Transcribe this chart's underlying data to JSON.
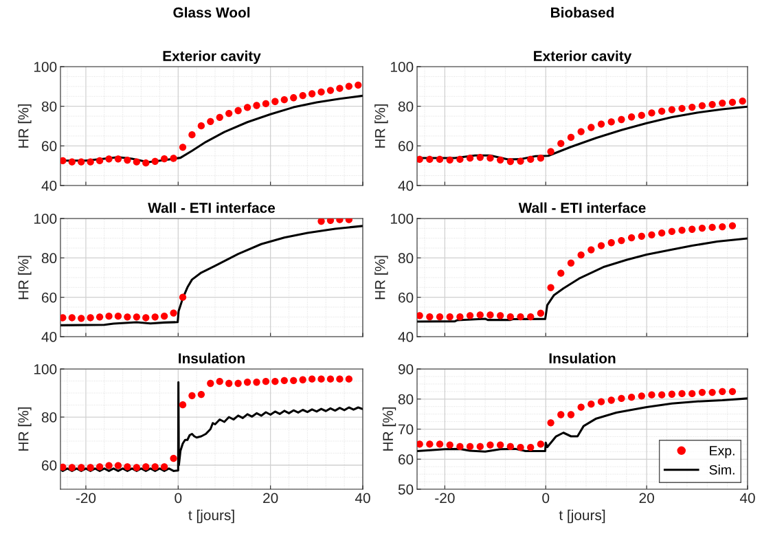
{
  "chart_data": [
    {
      "type": "line",
      "annotations": [
        "Glass Wool"
      ],
      "title": "Exterior cavity",
      "ylabel": "HR [%]",
      "xlim": [
        -25.5,
        40
      ],
      "ylim": [
        40,
        100
      ],
      "xticks": [
        -20,
        0,
        20,
        40
      ],
      "yticks": [
        40,
        60,
        80,
        100
      ],
      "tick_labels": "y",
      "grid": true,
      "series": [
        {
          "type": "scatter",
          "marker": "circle",
          "color": "#ff0000",
          "x": [
            -25,
            -23,
            -21,
            -19,
            -17,
            -15,
            -13,
            -11,
            -9,
            -7,
            -5,
            -3,
            -1,
            1,
            3,
            5,
            7,
            9,
            11,
            13,
            15,
            17,
            19,
            21,
            23,
            25,
            27,
            29,
            31,
            33,
            35,
            37,
            39
          ],
          "values": [
            52.5,
            51.9,
            51.9,
            51.9,
            52.5,
            53.4,
            53.4,
            52.8,
            51.9,
            51.4,
            52.2,
            53.5,
            53.7,
            59.3,
            65.6,
            70.1,
            72.3,
            74.4,
            76.4,
            77.8,
            79.4,
            80.4,
            81.3,
            82.4,
            83.3,
            84.3,
            85.4,
            86.3,
            87.2,
            88.0,
            89.0,
            90.1,
            90.7
          ]
        },
        {
          "line_style": "solid",
          "color": "#000000",
          "x": [
            -25.5,
            -20,
            -16,
            -13,
            -10,
            -6.5,
            -3,
            0.5,
            3,
            6,
            10,
            15,
            20,
            25,
            30,
            35,
            40
          ],
          "values": [
            52.6,
            52.6,
            53.5,
            54.3,
            53.5,
            51.8,
            52.8,
            54,
            57.5,
            62,
            67,
            72,
            76,
            79.5,
            82,
            83.8,
            85.3
          ]
        }
      ]
    },
    {
      "type": "line",
      "annotations": [
        "Biobased"
      ],
      "title": "Exterior cavity",
      "ylabel": "HR [%]",
      "xlim": [
        -25.5,
        40
      ],
      "ylim": [
        40,
        100
      ],
      "xticks": [
        -20,
        0,
        20,
        40
      ],
      "yticks": [
        40,
        60,
        80,
        100
      ],
      "tick_labels": "y",
      "grid": true,
      "series": [
        {
          "type": "scatter",
          "marker": "circle",
          "color": "#ff0000",
          "x": [
            -25,
            -23,
            -21,
            -19,
            -17,
            -15,
            -13,
            -11,
            -9,
            -7,
            -5,
            -3,
            -1,
            1,
            3,
            5,
            7,
            9,
            11,
            13,
            15,
            17,
            19,
            21,
            23,
            25,
            27,
            29,
            31,
            33,
            35,
            37,
            39
          ],
          "values": [
            53.2,
            53.2,
            53.2,
            52.9,
            53.2,
            53.8,
            54.2,
            53.8,
            52.9,
            52.1,
            52.3,
            53.2,
            53.8,
            57.1,
            61.2,
            64.3,
            67.2,
            69.3,
            71.0,
            72.1,
            73.3,
            74.6,
            75.4,
            76.6,
            77.5,
            78.3,
            78.9,
            79.5,
            80.3,
            80.9,
            81.6,
            82.0,
            82.6
          ]
        },
        {
          "line_style": "solid",
          "color": "#000000",
          "x": [
            -25.5,
            -18,
            -14,
            -11,
            -7.5,
            -5,
            -2,
            0.5,
            5,
            10,
            15,
            20,
            25,
            30,
            35,
            40
          ],
          "values": [
            53.9,
            53.9,
            55.2,
            55.2,
            53.2,
            53.3,
            54.8,
            55,
            59.5,
            64,
            68,
            71.5,
            74.5,
            76.8,
            78.5,
            79.8
          ]
        }
      ]
    },
    {
      "type": "line",
      "title": "Wall - ETI interface",
      "ylabel": "HR [%]",
      "xlim": [
        -25.5,
        40
      ],
      "ylim": [
        40,
        100
      ],
      "xticks": [
        -20,
        0,
        20,
        40
      ],
      "yticks": [
        40,
        60,
        80,
        100
      ],
      "tick_labels": "y",
      "grid": true,
      "series": [
        {
          "type": "scatter",
          "marker": "circle",
          "color": "#ff0000",
          "x": [
            -25,
            -23,
            -21,
            -19,
            -17,
            -15,
            -13,
            -11,
            -9,
            -7,
            -5,
            -3,
            -1,
            1,
            31,
            33,
            35,
            37
          ],
          "values": [
            49.6,
            49.6,
            49.3,
            49.6,
            50.0,
            50.4,
            50.4,
            50.0,
            50.0,
            49.6,
            50.0,
            50.4,
            52.0,
            60.0,
            98.6,
            99.0,
            99.4,
            99.4
          ]
        },
        {
          "line_style": "solid",
          "color": "#000000",
          "x": [
            -25.5,
            -16,
            -14,
            -9,
            -6,
            -3,
            -0.1,
            0.1,
            1,
            2,
            3,
            5,
            8,
            13,
            18,
            23,
            28,
            34,
            40
          ],
          "values": [
            45.8,
            46,
            46.6,
            47.3,
            46.7,
            47.2,
            47.4,
            53,
            59.5,
            65,
            69,
            72.5,
            76,
            82,
            87,
            90.3,
            92.7,
            94.8,
            96.2
          ]
        }
      ]
    },
    {
      "type": "line",
      "title": "Wall - ETI interface",
      "ylabel": "HR [%]",
      "xlim": [
        -25.5,
        40
      ],
      "ylim": [
        40,
        100
      ],
      "xticks": [
        -20,
        0,
        20,
        40
      ],
      "yticks": [
        40,
        60,
        80,
        100
      ],
      "tick_labels": "y",
      "grid": true,
      "series": [
        {
          "type": "scatter",
          "marker": "circle",
          "color": "#ff0000",
          "x": [
            -25,
            -23,
            -21,
            -19,
            -17,
            -15,
            -13,
            -11,
            -9,
            -7,
            -5,
            -3,
            -1,
            1,
            3,
            5,
            7,
            9,
            11,
            13,
            15,
            17,
            19,
            21,
            23,
            25,
            27,
            29,
            31,
            33,
            35,
            37
          ],
          "values": [
            50.7,
            50.1,
            50.1,
            50.1,
            50.1,
            50.7,
            51.0,
            51.0,
            50.7,
            50.1,
            50.1,
            50.1,
            51.9,
            64.9,
            72.2,
            77.4,
            81.5,
            84.1,
            86.2,
            87.7,
            88.8,
            90.2,
            91.0,
            91.7,
            92.6,
            93.4,
            94.0,
            94.5,
            95.1,
            95.5,
            95.8,
            96.3
          ]
        },
        {
          "line_style": "solid",
          "color": "#000000",
          "x": [
            -25.5,
            -18,
            -17.5,
            -12,
            -11.5,
            -7,
            -6.5,
            -0.1,
            0.3,
            1.6,
            3.5,
            6.6,
            11.6,
            16,
            20,
            25,
            29,
            34,
            40
          ],
          "values": [
            47.7,
            47.8,
            48.4,
            49.1,
            48.5,
            48.5,
            48.9,
            49,
            56,
            61,
            64.5,
            69.5,
            75.5,
            79,
            81.7,
            84.2,
            86.2,
            88.3,
            89.9
          ]
        }
      ]
    },
    {
      "type": "line",
      "title": "Insulation",
      "xlabel": "t [jours]",
      "ylabel": "HR [%]",
      "xlim": [
        -25.5,
        40
      ],
      "ylim": [
        50,
        100
      ],
      "xticks": [
        -20,
        0,
        20,
        40
      ],
      "yticks": [
        60,
        80,
        100
      ],
      "grid": true,
      "series": [
        {
          "type": "scatter",
          "marker": "circle",
          "color": "#ff0000",
          "x": [
            -25,
            -23,
            -21,
            -19,
            -17,
            -15,
            -13,
            -11,
            -9,
            -7,
            -5,
            -3,
            -1,
            1,
            3,
            5,
            7,
            9,
            11,
            13,
            15,
            17,
            19,
            21,
            23,
            25,
            27,
            29,
            31,
            33,
            35,
            37
          ],
          "values": [
            59.2,
            59.0,
            59.0,
            59.0,
            59.3,
            59.8,
            59.8,
            59.3,
            59.0,
            59.3,
            59.3,
            59.3,
            62.8,
            85.1,
            88.9,
            89.4,
            94.0,
            94.8,
            94.0,
            94.0,
            94.5,
            94.5,
            94.8,
            94.8,
            95.2,
            95.2,
            95.5,
            95.8,
            95.8,
            95.8,
            95.8,
            95.8
          ]
        },
        {
          "line_style": "solid",
          "color": "#000000",
          "x": [
            -25.5,
            -25,
            -24,
            -23,
            -22,
            -21,
            -20,
            -19,
            -18,
            -17,
            -16,
            -15,
            -14,
            -13,
            -12,
            -11,
            -10,
            -9,
            -8,
            -7,
            -6,
            -5,
            -4,
            -3,
            -2,
            -1,
            0,
            0.05,
            0.15,
            0.5,
            1,
            1.5,
            2,
            2.5,
            3,
            3.5,
            4,
            5,
            6,
            7,
            7.5,
            8,
            9,
            10,
            11,
            12,
            13,
            14,
            15,
            16,
            17,
            18,
            19,
            20,
            21,
            22,
            23,
            24,
            25,
            26,
            27,
            28,
            29,
            30,
            31,
            32,
            33,
            34,
            35,
            36,
            37,
            38,
            39,
            40
          ],
          "values": [
            58.2,
            57.6,
            58.6,
            57.6,
            58.6,
            57.6,
            58.6,
            57.6,
            58.6,
            57.6,
            58.6,
            57.6,
            58.6,
            57.6,
            58.6,
            57.6,
            58.6,
            57.6,
            58.6,
            57.6,
            58.6,
            57.6,
            58.6,
            57.6,
            58.6,
            57.6,
            57.8,
            94.5,
            60,
            66,
            69,
            70.5,
            70.5,
            72.5,
            73,
            72,
            71.5,
            72,
            73,
            75,
            77.5,
            77,
            79,
            78,
            80,
            79,
            80.6,
            79.6,
            81.2,
            80.2,
            81.6,
            80.6,
            82,
            81,
            82.3,
            81.3,
            82.6,
            81.6,
            82.8,
            81.9,
            83,
            82.1,
            83.2,
            82.3,
            83.4,
            82.5,
            83.6,
            82.7,
            83.8,
            82.9,
            84,
            83.1,
            84,
            83.3
          ]
        }
      ]
    },
    {
      "type": "line",
      "title": "Insulation",
      "xlabel": "t [jours]",
      "ylabel": "HR [%]",
      "xlim": [
        -25.5,
        40
      ],
      "ylim": [
        50,
        90
      ],
      "xticks": [
        -20,
        0,
        20,
        40
      ],
      "yticks": [
        50,
        60,
        70,
        80,
        90
      ],
      "grid": true,
      "legend": "bottom right",
      "series": [
        {
          "name": "Exp.",
          "type": "scatter",
          "marker": "circle",
          "color": "#ff0000",
          "x": [
            -25,
            -23,
            -21,
            -19,
            -17,
            -15,
            -13,
            -11,
            -9,
            -7,
            -5,
            -3,
            -1,
            1,
            3,
            5,
            7,
            9,
            11,
            13,
            15,
            17,
            19,
            21,
            23,
            25,
            27,
            29,
            31,
            33,
            35,
            37
          ],
          "values": [
            65.0,
            65.0,
            65.0,
            64.7,
            64.2,
            64.2,
            64.2,
            64.7,
            64.7,
            64.2,
            63.9,
            63.9,
            65.0,
            72.1,
            74.8,
            74.8,
            77.3,
            78.3,
            79.1,
            79.6,
            80.2,
            80.6,
            81.0,
            81.4,
            81.4,
            81.6,
            81.8,
            81.8,
            82.2,
            82.2,
            82.5,
            82.5
          ]
        },
        {
          "name": "Sim.",
          "line_style": "solid",
          "color": "#000000",
          "x": [
            -25.5,
            -20,
            -17,
            -15,
            -12,
            -9,
            -6,
            -4,
            -0.1,
            0,
            0.3,
            2,
            3.5,
            5,
            6.3,
            7.5,
            10,
            14,
            20,
            25,
            30,
            35,
            40
          ],
          "values": [
            62.7,
            63.3,
            63.4,
            62.8,
            62.5,
            63.3,
            63.4,
            62.7,
            62.7,
            65.5,
            64,
            67.5,
            68.8,
            67.6,
            67.6,
            71,
            73.5,
            75.5,
            77.3,
            78.5,
            79.2,
            79.6,
            80.2
          ]
        }
      ]
    }
  ]
}
